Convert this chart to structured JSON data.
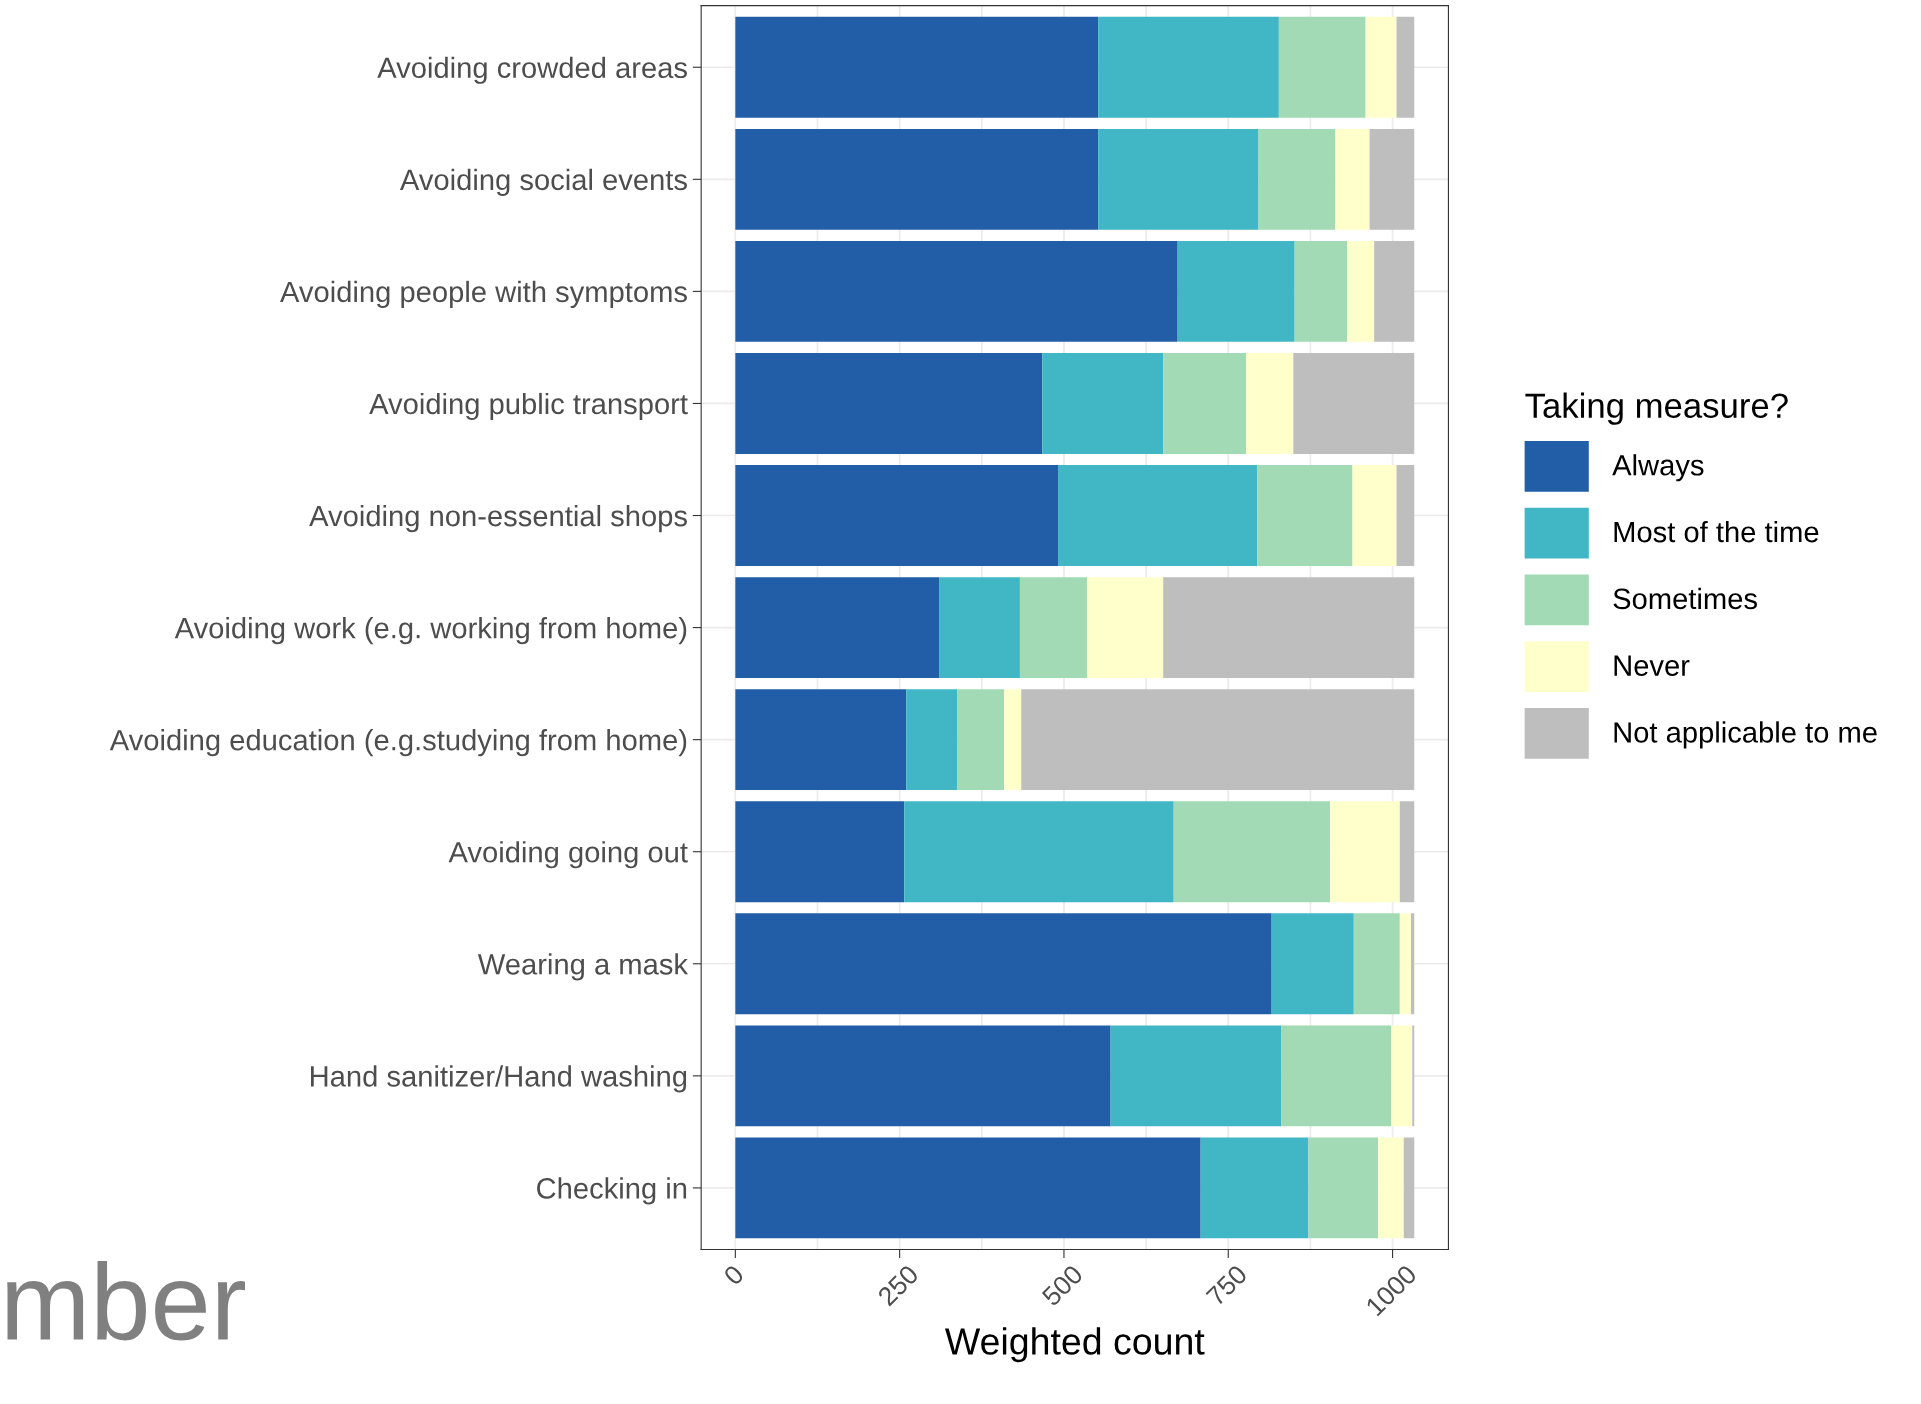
{
  "chart_data": {
    "type": "bar",
    "orientation": "horizontal",
    "stacked": true,
    "xlabel": "Weighted count",
    "legend_title": "Taking measure?",
    "legend": "right",
    "grid": true,
    "categories": [
      "Avoiding crowded areas",
      "Avoiding social events",
      "Avoiding people with symptoms",
      "Avoiding public transport",
      "Avoiding non-essential shops",
      "Avoiding work (e.g. working from home)",
      "Avoiding education (e.g.studying from home)",
      "Avoiding going out",
      "Wearing a mask",
      "Hand sanitizer/Hand washing",
      "Checking in"
    ],
    "series": [
      {
        "name": "Always",
        "color": "#225ea8",
        "values": [
          552,
          552,
          673,
          467,
          491,
          310,
          260,
          257,
          816,
          571,
          708
        ]
      },
      {
        "name": "Most of the time",
        "color": "#41b6c4",
        "values": [
          275,
          244,
          178,
          184,
          303,
          123,
          78,
          410,
          125,
          260,
          164
        ]
      },
      {
        "name": "Sometimes",
        "color": "#a1dab4",
        "values": [
          132,
          117,
          80,
          126,
          145,
          102,
          71,
          238,
          70,
          167,
          106
        ]
      },
      {
        "name": "Never",
        "color": "#ffffcc",
        "values": [
          47,
          52,
          41,
          72,
          67,
          116,
          26,
          106,
          17,
          32,
          39
        ]
      },
      {
        "name": "Not applicable to me",
        "color": "#bebebe",
        "values": [
          27,
          68,
          61,
          184,
          27,
          382,
          598,
          22,
          5,
          3,
          16
        ]
      }
    ],
    "xlim": [
      -52,
      1085
    ],
    "xticks": [
      0,
      250,
      500,
      750,
      1000
    ],
    "annotations": [
      "mber"
    ]
  }
}
